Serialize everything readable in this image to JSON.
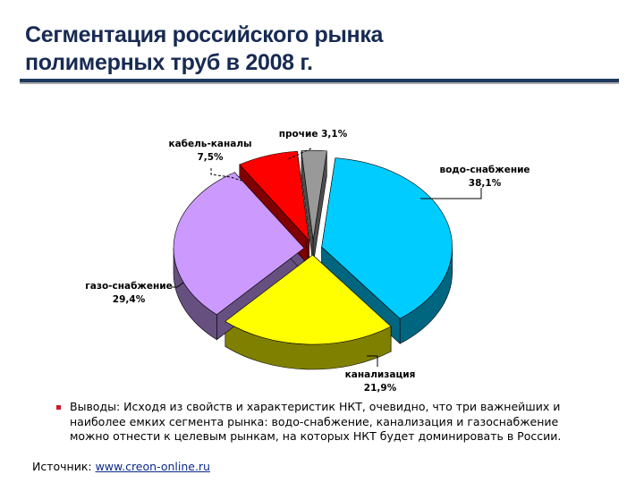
{
  "header": {
    "title_line1": "Сегментация российского рынка",
    "title_line2": "полимерных труб в 2008 г."
  },
  "chart_data": {
    "type": "pie",
    "title": "Сегментация российского рынка полимерных труб в 2008 г.",
    "style": "3d-exploded",
    "categories": [
      "водо-снабжение",
      "канализация",
      "газо-снабжение",
      "кабель-каналы",
      "прочие"
    ],
    "values": [
      38.1,
      21.9,
      29.4,
      7.5,
      3.1
    ],
    "value_labels": [
      "38,1%",
      "21,9%",
      "29,4%",
      "7,5%",
      "3,1%"
    ],
    "colors": {
      "top": [
        "#00ccff",
        "#ffff00",
        "#cc99ff",
        "#ff0000",
        "#999999"
      ],
      "side": [
        "#006680",
        "#808000",
        "#665080",
        "#800000",
        "#4d4d4d"
      ]
    },
    "legend": "none",
    "start_angle_deg": -84
  },
  "labels": [
    {
      "name": "водо-снабжение",
      "value": "38,1%"
    },
    {
      "name": "канализация",
      "value": "21,9%"
    },
    {
      "name": "газо-снабжение",
      "value": "29,4%"
    },
    {
      "name": "кабель-каналы",
      "value": "7,5%"
    },
    {
      "name": "прочие",
      "value": "прочие 3,1%"
    }
  ],
  "conclusion": {
    "text": "Выводы: Исходя из свойств и характеристик НКТ, очевидно, что три важнейших и наиболее емких сегмента рынка: водо-снабжение, канализация и газоснабжение можно отнести к целевым рынкам, на которых НКТ будет доминировать в России."
  },
  "source": {
    "label": "Источник: ",
    "link_text": "www.creon-online.ru"
  },
  "colors": {
    "title": "#172a52",
    "rule": "#1f3a60",
    "bullet": "#cc1a2a",
    "link": "#0a2a8a"
  }
}
